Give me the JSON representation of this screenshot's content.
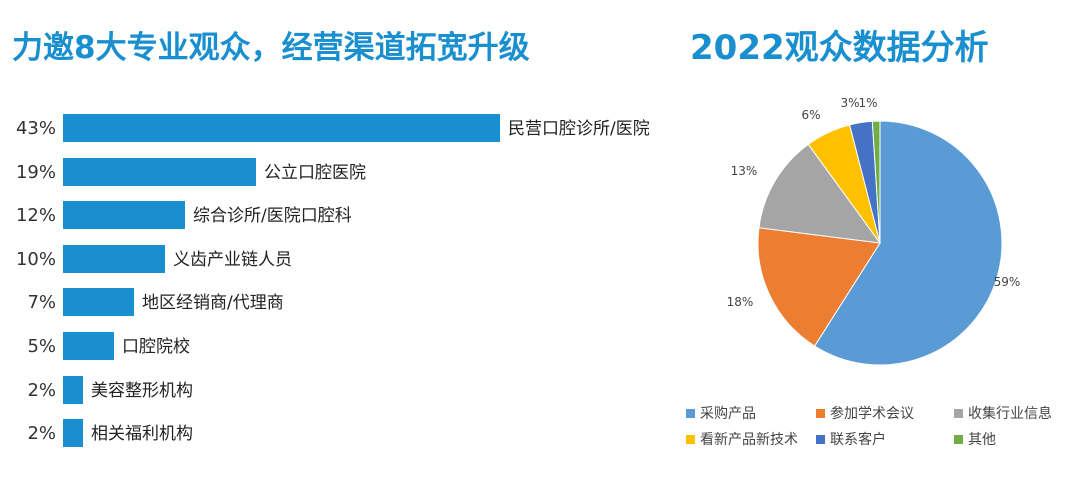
{
  "left_title": "力邀8大专业观众，经营渠道拓宽升级",
  "right_title": "2022观众数据分析",
  "colors": {
    "title": "#1a8fcf",
    "bar": "#1a8fcf"
  },
  "chart_data": [
    {
      "type": "bar",
      "orientation": "horizontal",
      "categories": [
        "民营口腔诊所/医院",
        "公立口腔医院",
        "综合诊所/医院口腔科",
        "义齿产业链人员",
        "地区经销商/代理商",
        "口腔院校",
        "美容整形机构",
        "相关福利机构"
      ],
      "values": [
        43,
        19,
        12,
        10,
        7,
        5,
        2,
        2
      ],
      "value_labels": [
        "43%",
        "19%",
        "12%",
        "10%",
        "7%",
        "5%",
        "2%",
        "2%"
      ],
      "unit": "%",
      "color": "#1a8fcf"
    },
    {
      "type": "pie",
      "categories": [
        "采购产品",
        "参加学术会议",
        "收集行业信息",
        "看新产品新技术",
        "联系客户",
        "其他"
      ],
      "values": [
        59,
        18,
        13,
        6,
        3,
        1
      ],
      "value_labels": [
        "59%",
        "18%",
        "13%",
        "6%",
        "3%",
        "1%"
      ],
      "colors": [
        "#5b9bd5",
        "#ed7d31",
        "#a5a5a5",
        "#ffc000",
        "#4472c4",
        "#70ad47"
      ],
      "legend": "bottom"
    }
  ]
}
